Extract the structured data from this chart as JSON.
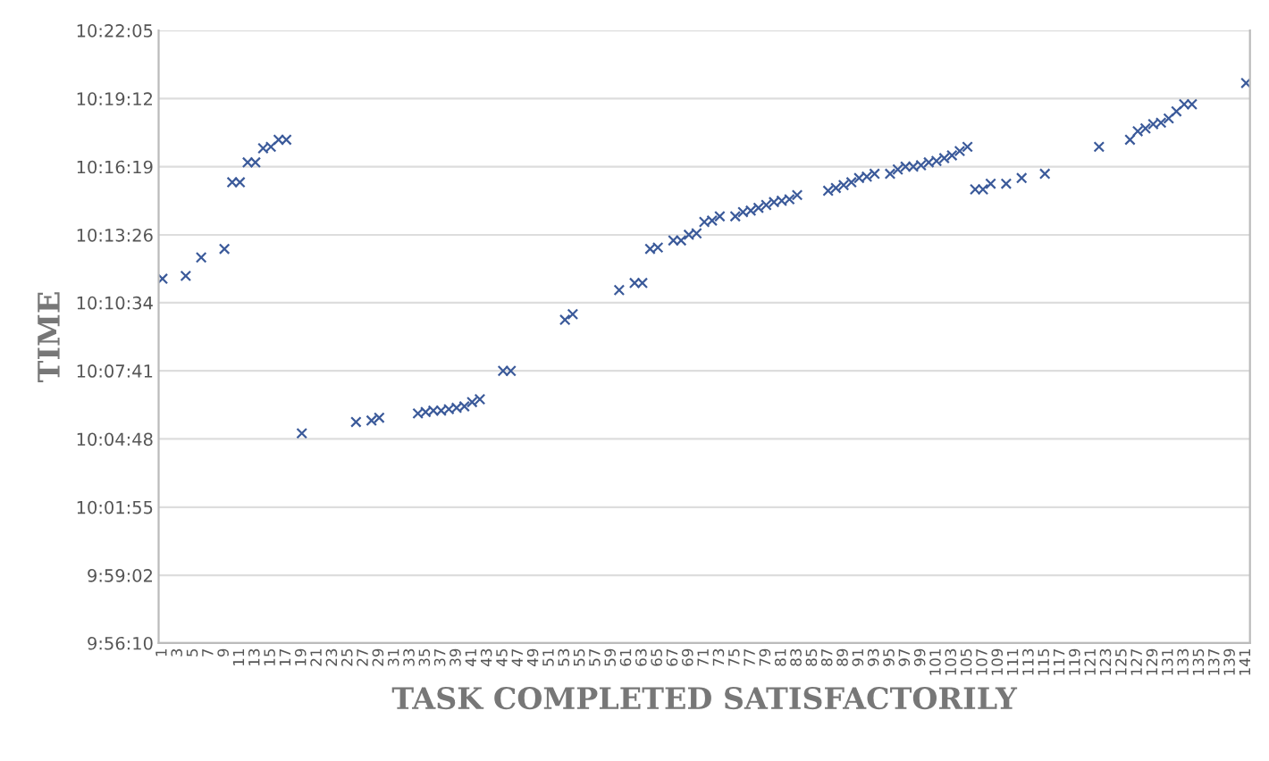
{
  "chart_data": {
    "type": "scatter",
    "xlabel": "TASK COMPLETED SATISFACTORILY",
    "ylabel": "TIME",
    "x": [
      1,
      4,
      6,
      9,
      10,
      11,
      12,
      13,
      14,
      15,
      16,
      17,
      19,
      26,
      28,
      29,
      34,
      35,
      36,
      37,
      38,
      39,
      40,
      41,
      42,
      45,
      46,
      53,
      54,
      60,
      62,
      63,
      64,
      65,
      67,
      68,
      69,
      70,
      71,
      72,
      73,
      75,
      76,
      77,
      78,
      79,
      80,
      81,
      82,
      83,
      87,
      88,
      89,
      90,
      91,
      92,
      93,
      95,
      96,
      97,
      98,
      99,
      100,
      101,
      102,
      103,
      104,
      105,
      106,
      107,
      108,
      110,
      112,
      115,
      122,
      126,
      127,
      128,
      129,
      130,
      131,
      132,
      133,
      134,
      141
    ],
    "series": [
      {
        "color": "#3b5a9a",
        "values": [
          10.193,
          10.195,
          10.208,
          10.214,
          10.261,
          10.261,
          10.275,
          10.275,
          10.285,
          10.286,
          10.291,
          10.291,
          10.084,
          10.092,
          10.093,
          10.095,
          10.098,
          10.099,
          10.1,
          10.1,
          10.101,
          10.102,
          10.103,
          10.106,
          10.108,
          10.128,
          10.128,
          10.164,
          10.168,
          10.185,
          10.19,
          10.19,
          10.214,
          10.215,
          10.22,
          10.22,
          10.224,
          10.225,
          10.233,
          10.234,
          10.237,
          10.237,
          10.24,
          10.241,
          10.243,
          10.245,
          10.247,
          10.248,
          10.249,
          10.252,
          10.255,
          10.257,
          10.259,
          10.261,
          10.264,
          10.265,
          10.267,
          10.267,
          10.27,
          10.272,
          10.272,
          10.273,
          10.275,
          10.276,
          10.278,
          10.28,
          10.283,
          10.286,
          10.256,
          10.256,
          10.26,
          10.26,
          10.264,
          10.267,
          10.286,
          10.291,
          10.297,
          10.299,
          10.302,
          10.303,
          10.306,
          10.311,
          10.316,
          10.316,
          10.331
        ]
      }
    ],
    "xlim": [
      0.5,
      141.5
    ],
    "xticks": [
      1,
      3,
      5,
      7,
      9,
      11,
      13,
      15,
      17,
      19,
      21,
      23,
      25,
      27,
      29,
      31,
      33,
      35,
      37,
      39,
      41,
      43,
      45,
      47,
      49,
      51,
      53,
      55,
      57,
      59,
      61,
      63,
      65,
      67,
      69,
      71,
      73,
      75,
      77,
      79,
      81,
      83,
      85,
      87,
      89,
      91,
      93,
      95,
      97,
      99,
      101,
      103,
      105,
      107,
      109,
      111,
      113,
      115,
      117,
      119,
      121,
      123,
      125,
      127,
      129,
      131,
      133,
      135,
      137,
      139,
      141
    ],
    "ylim": [
      9.93611,
      10.36806
    ],
    "yticks": [
      {
        "value": 9.93611,
        "label": "9:56:10"
      },
      {
        "value": 9.98389,
        "label": "9:59:02"
      },
      {
        "value": 10.03194,
        "label": "10:01:55"
      },
      {
        "value": 10.08,
        "label": "10:04:48"
      },
      {
        "value": 10.12806,
        "label": "10:07:41"
      },
      {
        "value": 10.17611,
        "label": "10:10:34"
      },
      {
        "value": 10.22389,
        "label": "10:13:26"
      },
      {
        "value": 10.27194,
        "label": "10:16:19"
      },
      {
        "value": 10.32,
        "label": "10:19:12"
      },
      {
        "value": 10.36806,
        "label": "10:22:05"
      }
    ],
    "grid": "y",
    "marker": "cross"
  }
}
